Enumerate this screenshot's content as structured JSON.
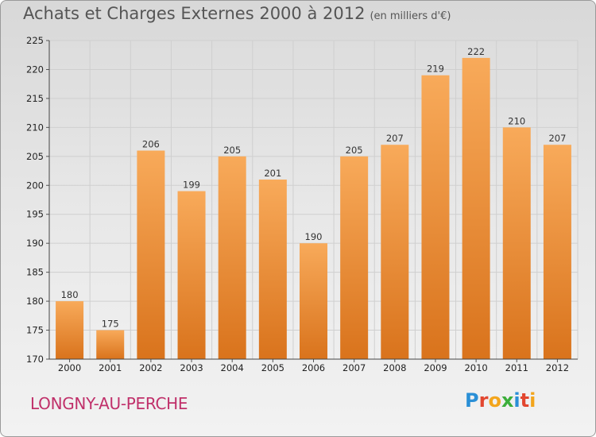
{
  "title": "Achats et Charges Externes 2000 à 2012",
  "subtitle": "(en milliers d'€)",
  "location": "LONGNY-AU-PERCHE",
  "brand": {
    "letters": [
      "P",
      "r",
      "o",
      "x",
      "i",
      "t",
      "i"
    ],
    "colors": [
      "#2a8fd6",
      "#e2462f",
      "#f3a51c",
      "#3cae3a",
      "#2a8fd6",
      "#e2462f",
      "#f3a51c"
    ]
  },
  "colors": {
    "bar_top": "#f8aa5a",
    "bar_bottom": "#d9731c",
    "grid": "#cfcfcf",
    "title": "#555555",
    "location": "#c0306a"
  },
  "chart_data": {
    "type": "bar",
    "categories": [
      "2000",
      "2001",
      "2002",
      "2003",
      "2004",
      "2005",
      "2006",
      "2007",
      "2008",
      "2009",
      "2010",
      "2011",
      "2012"
    ],
    "values": [
      180,
      175,
      206,
      199,
      205,
      201,
      190,
      205,
      207,
      219,
      222,
      210,
      207
    ],
    "ylim": [
      170,
      225
    ],
    "yticks": [
      170,
      175,
      180,
      185,
      190,
      195,
      200,
      205,
      210,
      215,
      220,
      225
    ],
    "grid": true,
    "data_labels": true
  }
}
